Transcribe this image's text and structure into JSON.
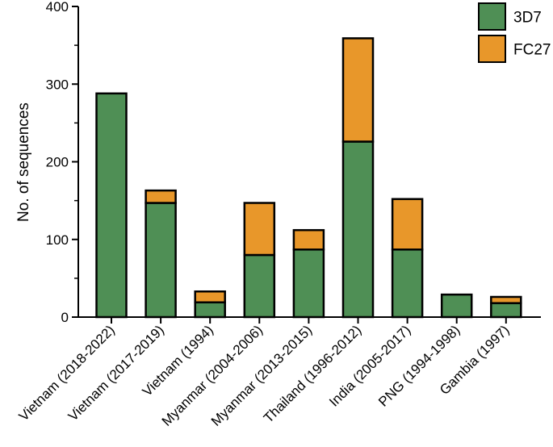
{
  "chart_data": {
    "type": "bar",
    "stacked": true,
    "title": "",
    "xlabel": "",
    "ylabel": "No. of sequences",
    "ylim": [
      0,
      400
    ],
    "yticks": [
      0,
      100,
      200,
      300,
      400
    ],
    "grid": false,
    "legend_position": "top-right",
    "categories": [
      "Vietnam (2018-2022)",
      "Vietnam (2017-2019)",
      "Vietnam (1994)",
      "Myanmar (2004-2006)",
      "Myanmar (2013-2015)",
      "Thailand (1996-2012)",
      "India (2005-2017)",
      "PNG (1994-1998)",
      "Gambia (1997)"
    ],
    "series": [
      {
        "name": "3D7",
        "color": "#4f8f55",
        "values": [
          288,
          147,
          19,
          80,
          87,
          226,
          87,
          29,
          18
        ]
      },
      {
        "name": "FC27",
        "color": "#e8972a",
        "values": [
          0,
          16,
          14,
          67,
          25,
          133,
          65,
          0,
          8
        ]
      }
    ]
  }
}
